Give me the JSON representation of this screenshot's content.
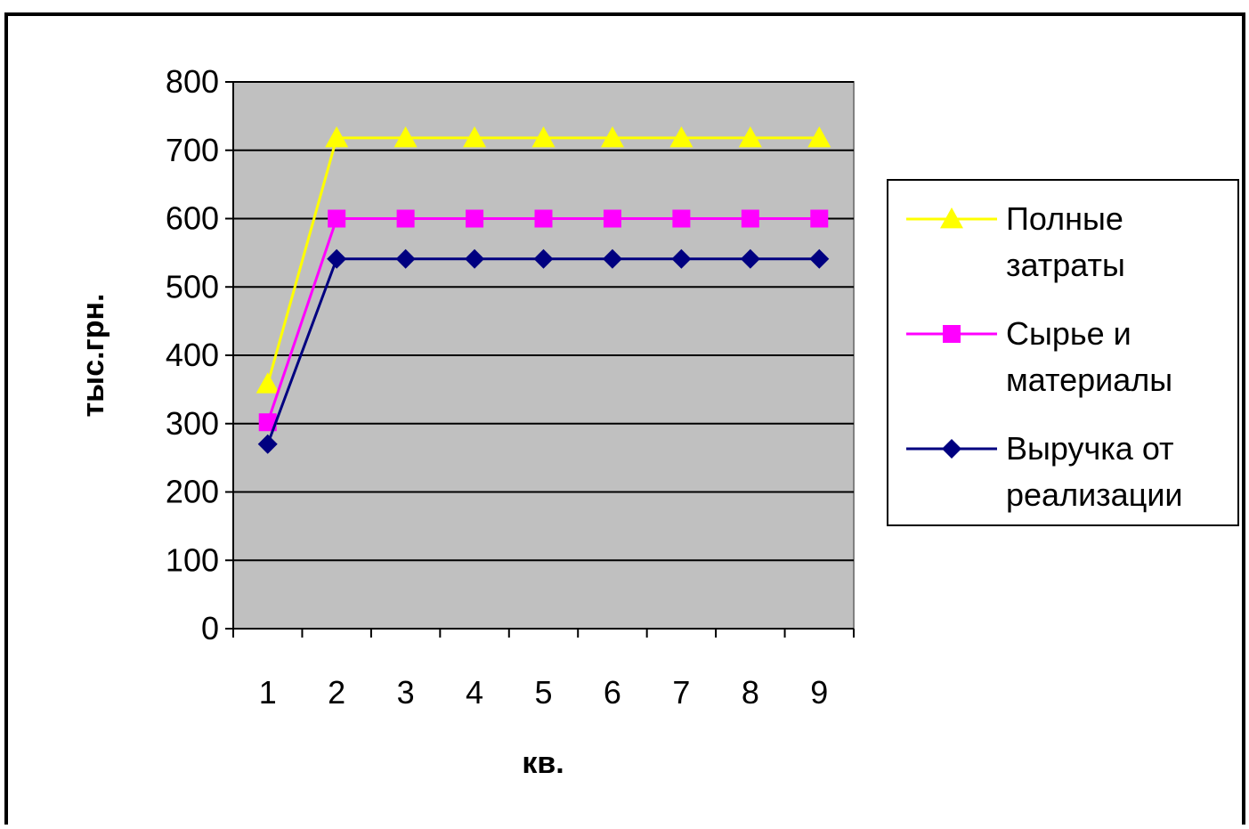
{
  "chart_data": {
    "type": "line",
    "title": "",
    "xlabel": "кв.",
    "ylabel": "тыс.грн.",
    "x": [
      1,
      2,
      3,
      4,
      5,
      6,
      7,
      8,
      9
    ],
    "ylim": [
      0,
      800
    ],
    "yticks": [
      0,
      100,
      200,
      300,
      400,
      500,
      600,
      700,
      800
    ],
    "grid": true,
    "plot_background": "#C0C0C0",
    "legend_position": "right",
    "series": [
      {
        "name": "Полные затраты",
        "name_lines": [
          "Полные",
          "затраты"
        ],
        "color": "#FFFF00",
        "marker": "triangle",
        "values": [
          358,
          718,
          718,
          718,
          718,
          718,
          718,
          718,
          718
        ]
      },
      {
        "name": "Сырье и материалы",
        "name_lines": [
          "Сырье и",
          "материалы"
        ],
        "color": "#FF00FF",
        "marker": "square",
        "values": [
          302,
          600,
          600,
          600,
          600,
          600,
          600,
          600,
          600
        ]
      },
      {
        "name": "Выручка от реализации",
        "name_lines": [
          "Выручка от",
          "реализации"
        ],
        "color": "#000080",
        "marker": "diamond",
        "values": [
          270,
          541,
          541,
          541,
          541,
          541,
          541,
          541,
          541
        ]
      }
    ]
  }
}
